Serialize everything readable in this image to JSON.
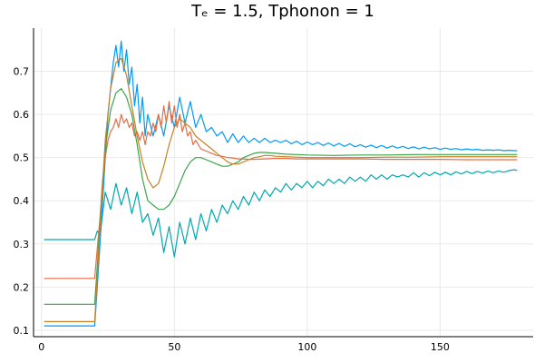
{
  "chart_data": {
    "type": "line",
    "title": "Tₑ = 1.5, Tphonon = 1",
    "xlabel": "",
    "ylabel": "",
    "xlim": [
      -3,
      185
    ],
    "ylim": [
      0.085,
      0.8
    ],
    "x_ticks": [
      0,
      50,
      100,
      150
    ],
    "x_tick_labels": [
      "0",
      "50",
      "100",
      "150"
    ],
    "y_ticks": [
      0.1,
      0.2,
      0.3,
      0.4,
      0.5,
      0.6,
      0.7
    ],
    "y_tick_labels": [
      "0.1",
      "0.2",
      "0.3",
      "0.4",
      "0.5",
      "0.6",
      "0.7"
    ],
    "grid": true,
    "legend": "none",
    "series": [
      {
        "color": "#00a9ad",
        "x": [
          1,
          20,
          21,
          22,
          24,
          26,
          28,
          30,
          32,
          34,
          36,
          38,
          40,
          42,
          44,
          46,
          48,
          50,
          52,
          54,
          56,
          58,
          60,
          62,
          64,
          66,
          68,
          70,
          72,
          74,
          76,
          78,
          80,
          82,
          84,
          86,
          88,
          90,
          92,
          94,
          96,
          98,
          100,
          102,
          104,
          106,
          108,
          110,
          112,
          114,
          116,
          118,
          120,
          122,
          124,
          126,
          128,
          130,
          132,
          134,
          136,
          138,
          140,
          142,
          144,
          146,
          148,
          150,
          152,
          154,
          156,
          158,
          160,
          162,
          164,
          166,
          168,
          170,
          172,
          174,
          176,
          178,
          179
        ],
        "y": [
          0.31,
          0.31,
          0.33,
          0.32,
          0.42,
          0.38,
          0.44,
          0.39,
          0.43,
          0.37,
          0.42,
          0.35,
          0.37,
          0.32,
          0.36,
          0.28,
          0.34,
          0.27,
          0.35,
          0.3,
          0.36,
          0.31,
          0.37,
          0.33,
          0.38,
          0.35,
          0.39,
          0.37,
          0.4,
          0.38,
          0.41,
          0.39,
          0.42,
          0.4,
          0.425,
          0.41,
          0.43,
          0.42,
          0.44,
          0.425,
          0.44,
          0.43,
          0.445,
          0.43,
          0.445,
          0.435,
          0.45,
          0.44,
          0.45,
          0.44,
          0.455,
          0.445,
          0.455,
          0.445,
          0.46,
          0.45,
          0.46,
          0.45,
          0.46,
          0.455,
          0.46,
          0.455,
          0.465,
          0.455,
          0.465,
          0.458,
          0.466,
          0.46,
          0.466,
          0.46,
          0.467,
          0.462,
          0.468,
          0.463,
          0.468,
          0.464,
          0.469,
          0.465,
          0.469,
          0.466,
          0.47,
          0.472,
          0.47
        ]
      },
      {
        "color": "#009af9",
        "x": [
          1,
          20,
          21,
          23,
          25,
          27,
          28,
          29,
          30,
          31,
          32,
          33,
          34,
          35,
          36,
          37,
          38,
          39,
          40,
          42,
          44,
          46,
          48,
          50,
          52,
          54,
          56,
          58,
          60,
          62,
          64,
          66,
          68,
          70,
          72,
          74,
          76,
          78,
          80,
          82,
          84,
          86,
          88,
          90,
          92,
          94,
          96,
          98,
          100,
          102,
          104,
          106,
          108,
          110,
          112,
          114,
          116,
          118,
          120,
          122,
          124,
          126,
          128,
          130,
          132,
          134,
          136,
          138,
          140,
          142,
          144,
          146,
          148,
          150,
          152,
          154,
          156,
          158,
          160,
          162,
          164,
          166,
          168,
          170,
          172,
          174,
          176,
          178,
          179
        ],
        "y": [
          0.11,
          0.11,
          0.2,
          0.4,
          0.6,
          0.72,
          0.76,
          0.71,
          0.77,
          0.7,
          0.75,
          0.67,
          0.71,
          0.62,
          0.67,
          0.58,
          0.64,
          0.55,
          0.6,
          0.55,
          0.6,
          0.55,
          0.62,
          0.57,
          0.64,
          0.58,
          0.63,
          0.57,
          0.6,
          0.56,
          0.57,
          0.55,
          0.56,
          0.535,
          0.555,
          0.535,
          0.55,
          0.535,
          0.545,
          0.535,
          0.545,
          0.535,
          0.54,
          0.535,
          0.54,
          0.532,
          0.538,
          0.53,
          0.536,
          0.53,
          0.535,
          0.528,
          0.534,
          0.527,
          0.533,
          0.526,
          0.532,
          0.525,
          0.53,
          0.524,
          0.529,
          0.523,
          0.528,
          0.522,
          0.527,
          0.522,
          0.526,
          0.521,
          0.525,
          0.52,
          0.524,
          0.52,
          0.523,
          0.519,
          0.522,
          0.519,
          0.521,
          0.518,
          0.52,
          0.518,
          0.519,
          0.517,
          0.518,
          0.517,
          0.518,
          0.516,
          0.517,
          0.516,
          0.516
        ]
      },
      {
        "color": "#e26f46",
        "x": [
          1,
          20,
          21,
          22,
          23,
          24,
          25,
          26,
          27,
          28,
          29,
          30,
          31,
          32,
          33,
          34,
          35,
          36,
          37,
          38,
          39,
          40,
          41,
          42,
          43,
          44,
          45,
          46,
          47,
          48,
          49,
          50,
          51,
          52,
          53,
          54,
          55,
          56,
          57,
          58,
          60,
          62,
          64,
          66,
          68,
          70,
          72,
          74,
          76,
          78,
          80,
          84,
          88,
          92,
          96,
          100,
          110,
          120,
          130,
          140,
          150,
          160,
          170,
          179
        ],
        "y": [
          0.22,
          0.22,
          0.29,
          0.36,
          0.45,
          0.5,
          0.54,
          0.56,
          0.57,
          0.59,
          0.57,
          0.6,
          0.58,
          0.59,
          0.57,
          0.58,
          0.55,
          0.56,
          0.54,
          0.56,
          0.53,
          0.56,
          0.55,
          0.58,
          0.56,
          0.6,
          0.57,
          0.62,
          0.58,
          0.63,
          0.58,
          0.62,
          0.57,
          0.6,
          0.56,
          0.58,
          0.55,
          0.56,
          0.53,
          0.54,
          0.52,
          0.515,
          0.51,
          0.505,
          0.503,
          0.5,
          0.499,
          0.497,
          0.497,
          0.496,
          0.496,
          0.497,
          0.498,
          0.498,
          0.497,
          0.497,
          0.497,
          0.497,
          0.496,
          0.496,
          0.496,
          0.495,
          0.495,
          0.495
        ]
      },
      {
        "color": "#3da44d",
        "x": [
          1,
          20,
          21,
          22,
          24,
          26,
          28,
          30,
          32,
          34,
          36,
          38,
          40,
          42,
          44,
          46,
          48,
          50,
          52,
          54,
          56,
          58,
          60,
          62,
          64,
          66,
          68,
          70,
          72,
          74,
          76,
          78,
          80,
          82,
          84,
          88,
          92,
          96,
          100,
          110,
          120,
          130,
          140,
          150,
          160,
          170,
          179
        ],
        "y": [
          0.16,
          0.16,
          0.25,
          0.35,
          0.52,
          0.61,
          0.65,
          0.66,
          0.64,
          0.6,
          0.53,
          0.45,
          0.4,
          0.39,
          0.38,
          0.38,
          0.39,
          0.41,
          0.44,
          0.47,
          0.49,
          0.5,
          0.5,
          0.495,
          0.49,
          0.485,
          0.48,
          0.48,
          0.485,
          0.49,
          0.5,
          0.505,
          0.51,
          0.512,
          0.512,
          0.51,
          0.508,
          0.507,
          0.506,
          0.505,
          0.506,
          0.506,
          0.507,
          0.507,
          0.507,
          0.507,
          0.507
        ]
      },
      {
        "color": "#c68125",
        "x": [
          1,
          20,
          21,
          22,
          24,
          26,
          28,
          30,
          32,
          34,
          36,
          38,
          40,
          42,
          44,
          46,
          48,
          50,
          52,
          54,
          56,
          58,
          60,
          62,
          64,
          66,
          68,
          70,
          72,
          74,
          76,
          78,
          80,
          82,
          84,
          86,
          88,
          92,
          96,
          100,
          110,
          120,
          130,
          140,
          150,
          160,
          170,
          179
        ],
        "y": [
          0.12,
          0.12,
          0.22,
          0.34,
          0.54,
          0.66,
          0.72,
          0.73,
          0.69,
          0.62,
          0.55,
          0.49,
          0.45,
          0.43,
          0.44,
          0.48,
          0.53,
          0.57,
          0.59,
          0.58,
          0.57,
          0.55,
          0.54,
          0.53,
          0.52,
          0.51,
          0.5,
          0.49,
          0.485,
          0.485,
          0.49,
          0.495,
          0.5,
          0.502,
          0.505,
          0.505,
          0.503,
          0.502,
          0.501,
          0.5,
          0.5,
          0.5,
          0.501,
          0.501,
          0.502,
          0.502,
          0.502,
          0.502
        ]
      }
    ]
  }
}
